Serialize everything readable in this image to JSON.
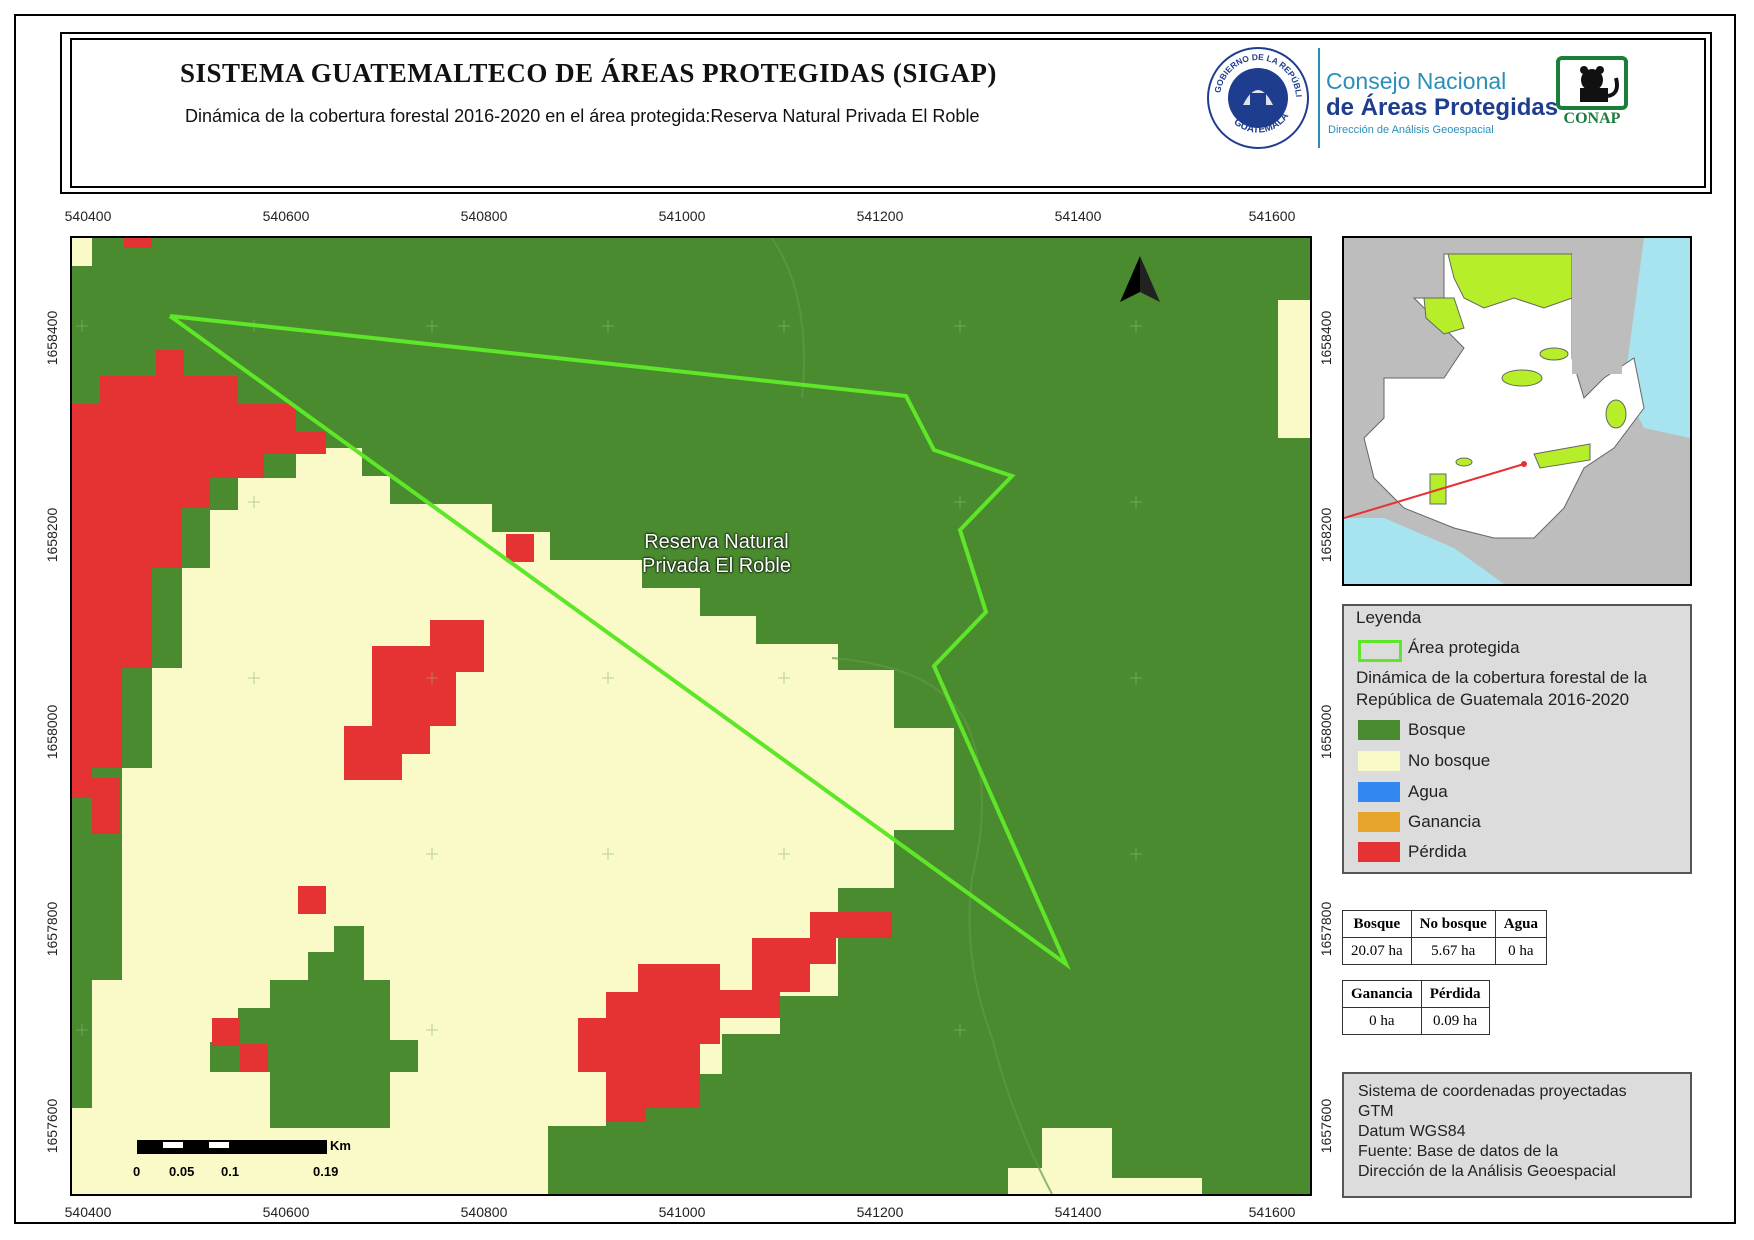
{
  "header": {
    "title": "SISTEMA GUATEMALTECO DE ÁREAS PROTEGIDAS  (SIGAP)",
    "subtitle": "Dinámica de la cobertura forestal 2016-2020 en el área protegida:Reserva Natural Privada El Roble",
    "seal_text_top": "GOBIERNO DE LA REPÚBLICA",
    "seal_text_bottom": "GUATEMALA",
    "conap_line1": "Consejo Nacional",
    "conap_line2": "de Áreas Protegidas",
    "conap_line3": "Dirección de Análisis Geoespacial",
    "conap_logo_text": "CONAP"
  },
  "map": {
    "x_ticks": [
      "540400",
      "540600",
      "540800",
      "541000",
      "541200",
      "541400",
      "541600"
    ],
    "y_ticks": [
      "1658400",
      "1658200",
      "1658000",
      "1657800",
      "1657600"
    ],
    "area_label_line1": "Reserva Natural",
    "area_label_line2": "Privada El Roble",
    "north_label": "N",
    "scale_unit": "Km",
    "scale_labels": [
      "0",
      "0.05",
      "0.1",
      "0.19"
    ],
    "colors": {
      "bosque": "#4a8b2f",
      "no_bosque": "#fafac8",
      "perdida": "#e53232",
      "area_outline": "#5ee628"
    }
  },
  "legend": {
    "title": "Leyenda",
    "area_label": "Área protegida",
    "subtitle_line1": "Dinámica de la cobertura forestal de la",
    "subtitle_line2": "República de Guatemala 2016-2020",
    "items": [
      {
        "label": "Bosque",
        "color": "#4a8b2f"
      },
      {
        "label": "No bosque",
        "color": "#fafac8"
      },
      {
        "label": "Agua",
        "color": "#3287f0"
      },
      {
        "label": "Ganancia",
        "color": "#e6a52a"
      },
      {
        "label": "Pérdida",
        "color": "#e53232"
      }
    ]
  },
  "stats": {
    "table1_headers": [
      "Bosque",
      "No bosque",
      "Agua"
    ],
    "table1_values": [
      "20.07 ha",
      "5.67 ha",
      "0 ha"
    ],
    "table2_headers": [
      "Ganancia",
      "Pérdida"
    ],
    "table2_values": [
      "0 ha",
      "0.09 ha"
    ]
  },
  "notes": [
    "Sistema de coordenadas proyectadas",
    "GTM",
    "Datum WGS84",
    "Fuente: Base de datos de la",
    "Dirección de la Análisis Geoespacial"
  ]
}
